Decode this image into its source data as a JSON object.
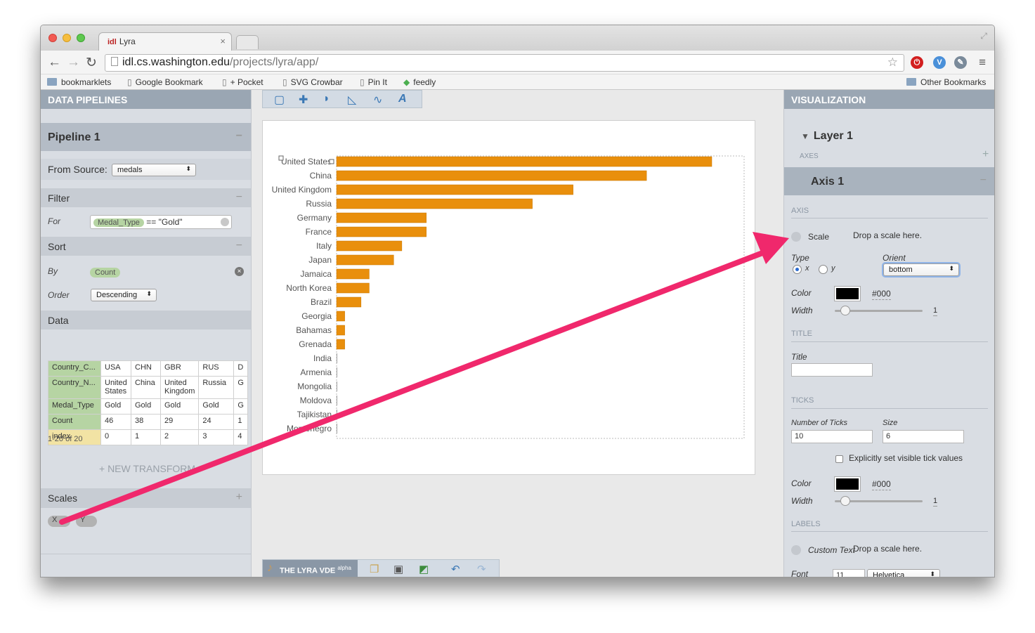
{
  "browser": {
    "tab_title": "Lyra",
    "favicon_text": "idl",
    "url_host": "idl.cs.washington.edu",
    "url_path": "/projects/lyra/app/",
    "bookmarks": [
      "bookmarklets",
      "Google Bookmark",
      "+ Pocket",
      "SVG Crowbar",
      "Pin It",
      "feedly"
    ],
    "other_bookmarks": "Other Bookmarks"
  },
  "left": {
    "header": "DATA PIPELINES",
    "pipeline_title": "Pipeline 1",
    "from_source_label": "From Source:",
    "from_source_value": "medals",
    "filter_title": "Filter",
    "filter_for_label": "For",
    "filter_field": "Medal_Type",
    "filter_expr": "== \"Gold\"",
    "sort_title": "Sort",
    "sort_by_label": "By",
    "sort_by_value": "Count",
    "sort_order_label": "Order",
    "sort_order_value": "Descending",
    "data_title": "Data",
    "table_headers": [
      "Country_C...",
      "Country_N...",
      "Medal_Type",
      "Count",
      "index"
    ],
    "table_columns": [
      [
        "USA",
        "United States",
        "Gold",
        "46",
        "0"
      ],
      [
        "CHN",
        "China",
        "Gold",
        "38",
        "1"
      ],
      [
        "GBR",
        "United Kingdom",
        "Gold",
        "29",
        "2"
      ],
      [
        "RUS",
        "Russia",
        "Gold",
        "24",
        "3"
      ],
      [
        "D",
        "G",
        "G",
        "1",
        "4"
      ]
    ],
    "pager": "1-20 of 20",
    "new_transform": "+ NEW TRANSFORM",
    "scales_title": "Scales",
    "scale_x": "X",
    "scale_y": "Y"
  },
  "center": {
    "brand": "THE LYRA VDE",
    "brand_sup": "alpha",
    "chart_data": {
      "type": "bar",
      "orientation": "horizontal",
      "categories": [
        "United States",
        "China",
        "United Kingdom",
        "Russia",
        "Germany",
        "France",
        "Italy",
        "Japan",
        "Jamaica",
        "North Korea",
        "Brazil",
        "Georgia",
        "Bahamas",
        "Grenada",
        "India",
        "Armenia",
        "Mongolia",
        "Moldova",
        "Tajikistan",
        "Montenegro"
      ],
      "values": [
        46,
        38,
        29,
        24,
        11,
        11,
        8,
        7,
        4,
        4,
        3,
        1,
        1,
        1,
        0,
        0,
        0,
        0,
        0,
        0
      ],
      "xlim": [
        0,
        46
      ],
      "color": "#e98f0c"
    }
  },
  "right": {
    "header": "VISUALIZATION",
    "layer_title": "Layer 1",
    "axes_label": "AXES",
    "axis_title": "Axis 1",
    "axis_section": "AXIS",
    "scale_label": "Scale",
    "drop_scale": "Drop a scale here.",
    "type_label": "Type",
    "type_x": "x",
    "type_y": "y",
    "orient_label": "Orient",
    "orient_value": "bottom",
    "color_label": "Color",
    "color_value": "#000",
    "width_label": "Width",
    "width_value": "1",
    "title_section": "TITLE",
    "title_label": "Title",
    "ticks_section": "TICKS",
    "num_ticks_label": "Number of Ticks",
    "num_ticks_value": "10",
    "size_label": "Size",
    "size_value": "6",
    "explicit_label": "Explicitly set visible tick values",
    "tick_color_label": "Color",
    "tick_color_value": "#000",
    "tick_width_label": "Width",
    "tick_width_value": "1",
    "labels_section": "LABELS",
    "custom_text_label": "Custom Text",
    "drop_scale_2": "Drop a scale here.",
    "font_label": "Font",
    "font_size": "11",
    "font_value": "Helvetica"
  },
  "colors": {
    "accent_arrow": "#f0286c",
    "bar": "#e98f0c",
    "panel": "#d9dde3",
    "header": "#9aa6b3"
  }
}
